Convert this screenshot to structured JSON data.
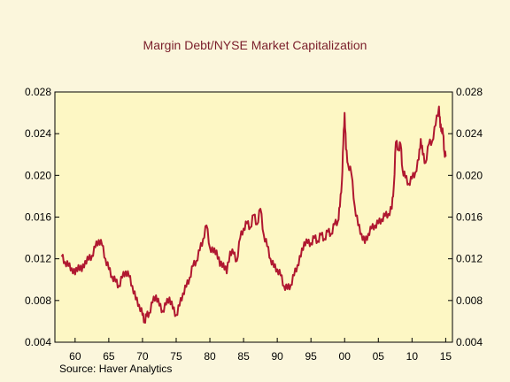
{
  "chart_data": {
    "type": "line",
    "title": "Margin Debt/NYSE Market Capitalization",
    "source": "Source: Haver Analytics",
    "xlabel": "",
    "ylabel": "",
    "xlim": [
      1957,
      2016
    ],
    "ylim": [
      0.004,
      0.028
    ],
    "x_ticks": [
      1960,
      1965,
      1970,
      1975,
      1980,
      1985,
      1990,
      1995,
      2000,
      2005,
      2010,
      2015
    ],
    "x_tick_labels": [
      "60",
      "65",
      "70",
      "75",
      "80",
      "85",
      "90",
      "95",
      "00",
      "05",
      "10",
      "15"
    ],
    "y_ticks": [
      0.004,
      0.008,
      0.012,
      0.016,
      0.02,
      0.024,
      0.028
    ],
    "y_tick_labels": [
      "0.004",
      "0.008",
      "0.012",
      "0.016",
      "0.020",
      "0.024",
      "0.028"
    ],
    "grid": false,
    "colors": {
      "page": "#fbf6dc",
      "plot": "#fdf7c4",
      "line": "#b01830",
      "title": "#7a1e2a"
    },
    "series": [
      {
        "name": "",
        "x": [
          1958.0,
          1958.5,
          1959.0,
          1959.5,
          1960.0,
          1960.5,
          1961.0,
          1961.5,
          1962.0,
          1962.5,
          1963.0,
          1963.5,
          1964.0,
          1964.5,
          1965.0,
          1965.5,
          1966.0,
          1966.5,
          1967.0,
          1967.5,
          1968.0,
          1968.5,
          1969.0,
          1969.5,
          1970.0,
          1970.3,
          1970.6,
          1971.0,
          1971.5,
          1972.0,
          1972.5,
          1973.0,
          1973.5,
          1974.0,
          1974.5,
          1975.0,
          1975.5,
          1976.0,
          1976.5,
          1977.0,
          1977.5,
          1978.0,
          1978.5,
          1979.0,
          1979.5,
          1980.0,
          1980.5,
          1981.0,
          1981.5,
          1982.0,
          1982.5,
          1983.0,
          1983.5,
          1984.0,
          1984.5,
          1985.0,
          1985.5,
          1986.0,
          1986.5,
          1987.0,
          1987.5,
          1988.0,
          1988.5,
          1989.0,
          1989.5,
          1990.0,
          1990.5,
          1991.0,
          1991.5,
          1992.0,
          1992.5,
          1993.0,
          1993.5,
          1994.0,
          1994.5,
          1995.0,
          1995.5,
          1996.0,
          1996.5,
          1997.0,
          1997.5,
          1998.0,
          1998.5,
          1999.0,
          1999.3,
          1999.6,
          1999.8,
          2000.0,
          2000.2,
          2000.5,
          2001.0,
          2001.5,
          2002.0,
          2002.5,
          2003.0,
          2003.5,
          2004.0,
          2004.5,
          2005.0,
          2005.5,
          2006.0,
          2006.5,
          2007.0,
          2007.3,
          2007.6,
          2008.0,
          2008.3,
          2008.6,
          2009.0,
          2009.5,
          2010.0,
          2010.5,
          2011.0,
          2011.3,
          2011.6,
          2012.0,
          2012.5,
          2013.0,
          2013.5,
          2014.0,
          2014.2,
          2014.4,
          2014.6,
          2014.8,
          2015.0
        ],
        "y": [
          0.0122,
          0.0117,
          0.0113,
          0.0111,
          0.0105,
          0.0114,
          0.0108,
          0.0118,
          0.0119,
          0.0123,
          0.0131,
          0.0138,
          0.0133,
          0.012,
          0.011,
          0.0103,
          0.0098,
          0.0094,
          0.0102,
          0.0108,
          0.0103,
          0.0094,
          0.0081,
          0.0076,
          0.0066,
          0.006,
          0.0065,
          0.0068,
          0.0078,
          0.0085,
          0.0075,
          0.007,
          0.0076,
          0.0083,
          0.0072,
          0.0066,
          0.0075,
          0.0087,
          0.0093,
          0.0102,
          0.0113,
          0.0118,
          0.0128,
          0.0139,
          0.0152,
          0.0131,
          0.0126,
          0.0128,
          0.0113,
          0.0116,
          0.0106,
          0.0127,
          0.0125,
          0.0118,
          0.014,
          0.0149,
          0.0154,
          0.015,
          0.0162,
          0.0153,
          0.0168,
          0.0143,
          0.0132,
          0.012,
          0.0112,
          0.011,
          0.0104,
          0.0094,
          0.0091,
          0.0095,
          0.0104,
          0.0114,
          0.0122,
          0.0136,
          0.0135,
          0.0135,
          0.014,
          0.0137,
          0.0143,
          0.0139,
          0.0146,
          0.0144,
          0.0153,
          0.0156,
          0.017,
          0.0195,
          0.023,
          0.026,
          0.0225,
          0.0211,
          0.0202,
          0.017,
          0.0152,
          0.0144,
          0.0135,
          0.0144,
          0.0149,
          0.0152,
          0.0154,
          0.0158,
          0.0161,
          0.0163,
          0.0168,
          0.019,
          0.0232,
          0.0225,
          0.023,
          0.0205,
          0.0198,
          0.0192,
          0.0197,
          0.0203,
          0.0215,
          0.0235,
          0.022,
          0.0212,
          0.023,
          0.0233,
          0.0248,
          0.0266,
          0.0246,
          0.0245,
          0.024,
          0.0222,
          0.0218
        ]
      }
    ]
  }
}
